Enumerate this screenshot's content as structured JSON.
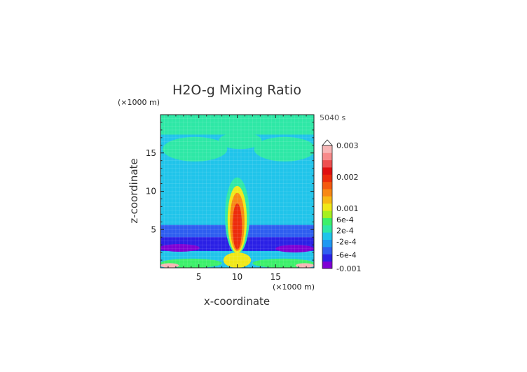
{
  "chart_data": {
    "type": "heatmap",
    "title": "H2O-g Mixing Ratio",
    "xlabel": "x-coordinate",
    "ylabel": "z-coordinate",
    "x_unit": "(×1000 m)",
    "y_unit": "(×1000 m)",
    "time_label": "5040 s",
    "xlim": [
      0,
      20
    ],
    "ylim": [
      0,
      20
    ],
    "x_ticks": [
      {
        "value": 5,
        "label": "5"
      },
      {
        "value": 10,
        "label": "10"
      },
      {
        "value": 15,
        "label": "15"
      }
    ],
    "y_ticks": [
      {
        "value": 5,
        "label": "5"
      },
      {
        "value": 10,
        "label": "10"
      },
      {
        "value": 15,
        "label": "15"
      }
    ],
    "colorbar": {
      "colors": [
        "#7f00d4",
        "#2a20e6",
        "#2e5ef0",
        "#1e98f2",
        "#20c4ea",
        "#2ee8a6",
        "#3cf06a",
        "#a6f020",
        "#f0e818",
        "#f8b814",
        "#f88814",
        "#f45a10",
        "#ec2c0c",
        "#e01010",
        "#ee5050",
        "#f88a8a",
        "#f8b6b6"
      ],
      "labels": [
        {
          "value": "0.003",
          "pos": 1.0
        },
        {
          "value": "0.002",
          "pos": 0.745
        },
        {
          "value": "0.001",
          "pos": 0.49
        },
        {
          "value": "6e-4",
          "pos": 0.398
        },
        {
          "value": "2e-4",
          "pos": 0.31
        },
        {
          "value": "-2e-4",
          "pos": 0.218
        },
        {
          "value": "-6e-4",
          "pos": 0.11
        },
        {
          "value": "-0.001",
          "pos": 0.0
        }
      ]
    },
    "regions": [
      {
        "name": "upper-band",
        "kind": "rect",
        "x0": 0,
        "x1": 20,
        "y0": 17.4,
        "y1": 20,
        "color": "#2ee8a6"
      },
      {
        "name": "upper-lobe-left",
        "kind": "ellipse",
        "cx": 4.5,
        "cy": 15.5,
        "rx": 4.2,
        "ry": 1.6,
        "color": "#2ee8a6"
      },
      {
        "name": "upper-lobe-right",
        "kind": "ellipse",
        "cx": 16.2,
        "cy": 15.5,
        "rx": 4.0,
        "ry": 1.6,
        "color": "#2ee8a6"
      },
      {
        "name": "upper-lobe-center",
        "kind": "ellipse",
        "cx": 10.4,
        "cy": 16.6,
        "rx": 2.8,
        "ry": 1.1,
        "color": "#2ee8a6"
      },
      {
        "name": "mid-band-left",
        "kind": "ellipse",
        "cx": 3.2,
        "cy": 12.5,
        "rx": 3.4,
        "ry": 0.8,
        "color": "#20c4ea"
      },
      {
        "name": "mid-band-right",
        "kind": "ellipse",
        "cx": 17.3,
        "cy": 12.5,
        "rx": 3.2,
        "ry": 0.8,
        "color": "#20c4ea"
      },
      {
        "name": "lower-mid-right",
        "kind": "ellipse",
        "cx": 17.0,
        "cy": 9.2,
        "rx": 3.0,
        "ry": 0.7,
        "color": "#20c4ea"
      },
      {
        "name": "lower-mid-left",
        "kind": "ellipse",
        "cx": 3.0,
        "cy": 8.0,
        "rx": 3.0,
        "ry": 0.7,
        "color": "#20c4ea"
      },
      {
        "name": "low-band",
        "kind": "rect",
        "x0": 0,
        "x1": 20,
        "y0": 3.6,
        "y1": 5.6,
        "color": "#2e5ef0"
      },
      {
        "name": "low-band-center",
        "kind": "rect",
        "x0": 0,
        "x1": 20,
        "y0": 2.2,
        "y1": 4.0,
        "color": "#2a20e6"
      },
      {
        "name": "low-band-purple-left",
        "kind": "ellipse",
        "cx": 2.5,
        "cy": 2.6,
        "rx": 2.6,
        "ry": 0.5,
        "color": "#7f00d4"
      },
      {
        "name": "low-band-purple-right",
        "kind": "ellipse",
        "cx": 17.5,
        "cy": 2.5,
        "rx": 2.5,
        "ry": 0.5,
        "color": "#7f00d4"
      },
      {
        "name": "ground-band",
        "kind": "rect",
        "x0": 0,
        "x1": 20,
        "y0": 0,
        "y1": 1.4,
        "color": "#20c4ea"
      },
      {
        "name": "ground-band-green-left",
        "kind": "ellipse",
        "cx": 4.0,
        "cy": 0.6,
        "rx": 4.0,
        "ry": 0.6,
        "color": "#3cf06a"
      },
      {
        "name": "ground-band-green-right",
        "kind": "ellipse",
        "cx": 16.0,
        "cy": 0.6,
        "rx": 4.0,
        "ry": 0.6,
        "color": "#3cf06a"
      },
      {
        "name": "ground-hot-left",
        "kind": "ellipse",
        "cx": 1.2,
        "cy": 0.3,
        "rx": 1.2,
        "ry": 0.3,
        "color": "#f8b6b6"
      },
      {
        "name": "ground-hot-right",
        "kind": "ellipse",
        "cx": 18.8,
        "cy": 0.3,
        "rx": 1.2,
        "ry": 0.3,
        "color": "#f8b6b6"
      },
      {
        "name": "plume-1",
        "kind": "ellipse",
        "cx": 10.0,
        "cy": 6.8,
        "rx": 1.6,
        "ry": 5.0,
        "color": "#2ee8a6"
      },
      {
        "name": "plume-2",
        "kind": "ellipse",
        "cx": 10.0,
        "cy": 6.3,
        "rx": 1.25,
        "ry": 4.4,
        "color": "#f0e818"
      },
      {
        "name": "plume-3",
        "kind": "ellipse",
        "cx": 10.0,
        "cy": 6.0,
        "rx": 0.95,
        "ry": 3.8,
        "color": "#f88814"
      },
      {
        "name": "plume-4",
        "kind": "ellipse",
        "cx": 10.0,
        "cy": 5.4,
        "rx": 0.62,
        "ry": 3.0,
        "color": "#ec2c0c"
      },
      {
        "name": "plume-base",
        "kind": "ellipse",
        "cx": 10.0,
        "cy": 1.0,
        "rx": 1.8,
        "ry": 1.0,
        "color": "#f0e818"
      }
    ]
  }
}
